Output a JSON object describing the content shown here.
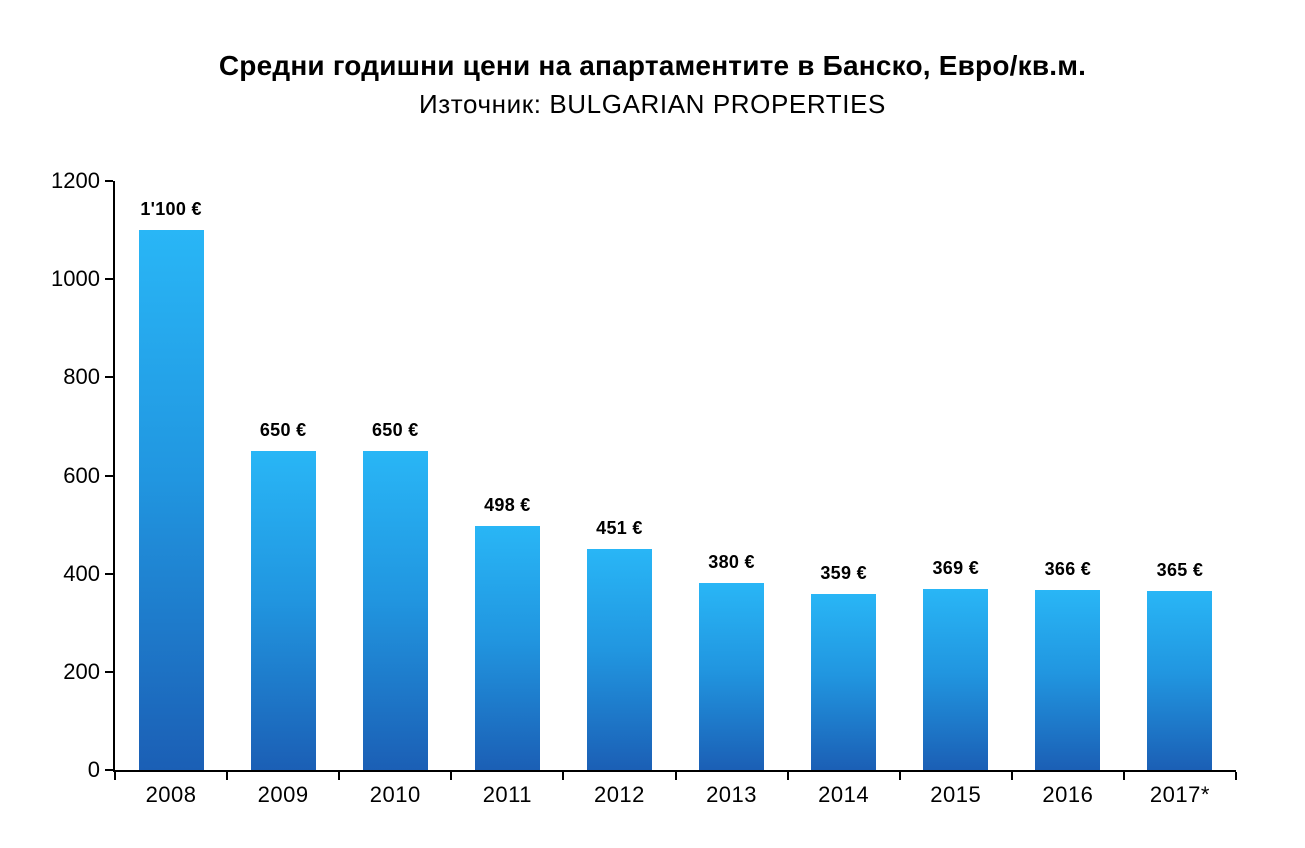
{
  "header": {
    "title": "Средни годишни цени на апартаментите в Банско, Евро/кв.м.",
    "subtitle": "Източник: BULGARIAN PROPERTIES"
  },
  "chart_data": {
    "type": "bar",
    "title": "Средни годишни цени на апартаментите в Банско, Евро/кв.м.",
    "subtitle": "Източник: BULGARIAN PROPERTIES",
    "categories": [
      "2008",
      "2009",
      "2010",
      "2011",
      "2012",
      "2013",
      "2014",
      "2015",
      "2016",
      "2017*"
    ],
    "values": [
      1100,
      650,
      650,
      498,
      451,
      380,
      359,
      369,
      366,
      365
    ],
    "value_labels": [
      "1'100 €",
      "650 €",
      "650 €",
      "498 €",
      "451 €",
      "380 €",
      "359 €",
      "369 €",
      "366 €",
      "365 €"
    ],
    "unit": "€",
    "xlabel": "",
    "ylabel": "",
    "ylim": [
      0,
      1200
    ],
    "y_ticks": [
      0,
      200,
      400,
      600,
      800,
      1000,
      1200
    ],
    "grid": false,
    "legend": false,
    "colors": {
      "bar_top": "#29b6f6",
      "bar_mid": "#2196e0",
      "bar_bottom": "#1b5fb5",
      "axis": "#000000",
      "text": "#000000",
      "background": "#ffffff"
    }
  }
}
